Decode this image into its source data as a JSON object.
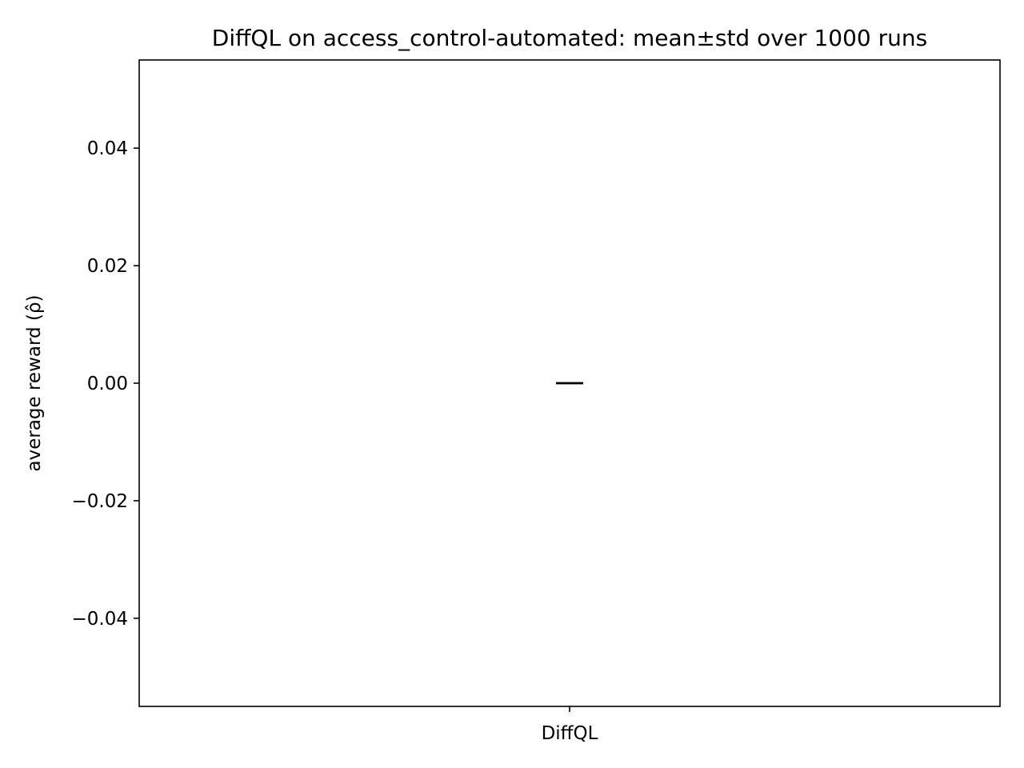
{
  "chart_data": {
    "type": "bar",
    "title": "DiffQL on access_control-automated: mean±std over 1000 runs",
    "xlabel": "",
    "ylabel": "average reward (ρ̂)",
    "categories": [
      "DiffQL"
    ],
    "series": [
      {
        "values": [
          0.0
        ],
        "error": [
          0.0
        ]
      }
    ],
    "ylim": [
      -0.055,
      0.055
    ],
    "yticks": [
      -0.04,
      -0.02,
      0.0,
      0.02,
      0.04
    ],
    "ytick_labels": [
      "−0.04",
      "−0.02",
      "0.00",
      "0.02",
      "0.04"
    ],
    "grid": false,
    "legend": "none",
    "colors": {
      "bar": "#1f77b4",
      "errorbar": "#000000",
      "axes": "#000000"
    }
  }
}
